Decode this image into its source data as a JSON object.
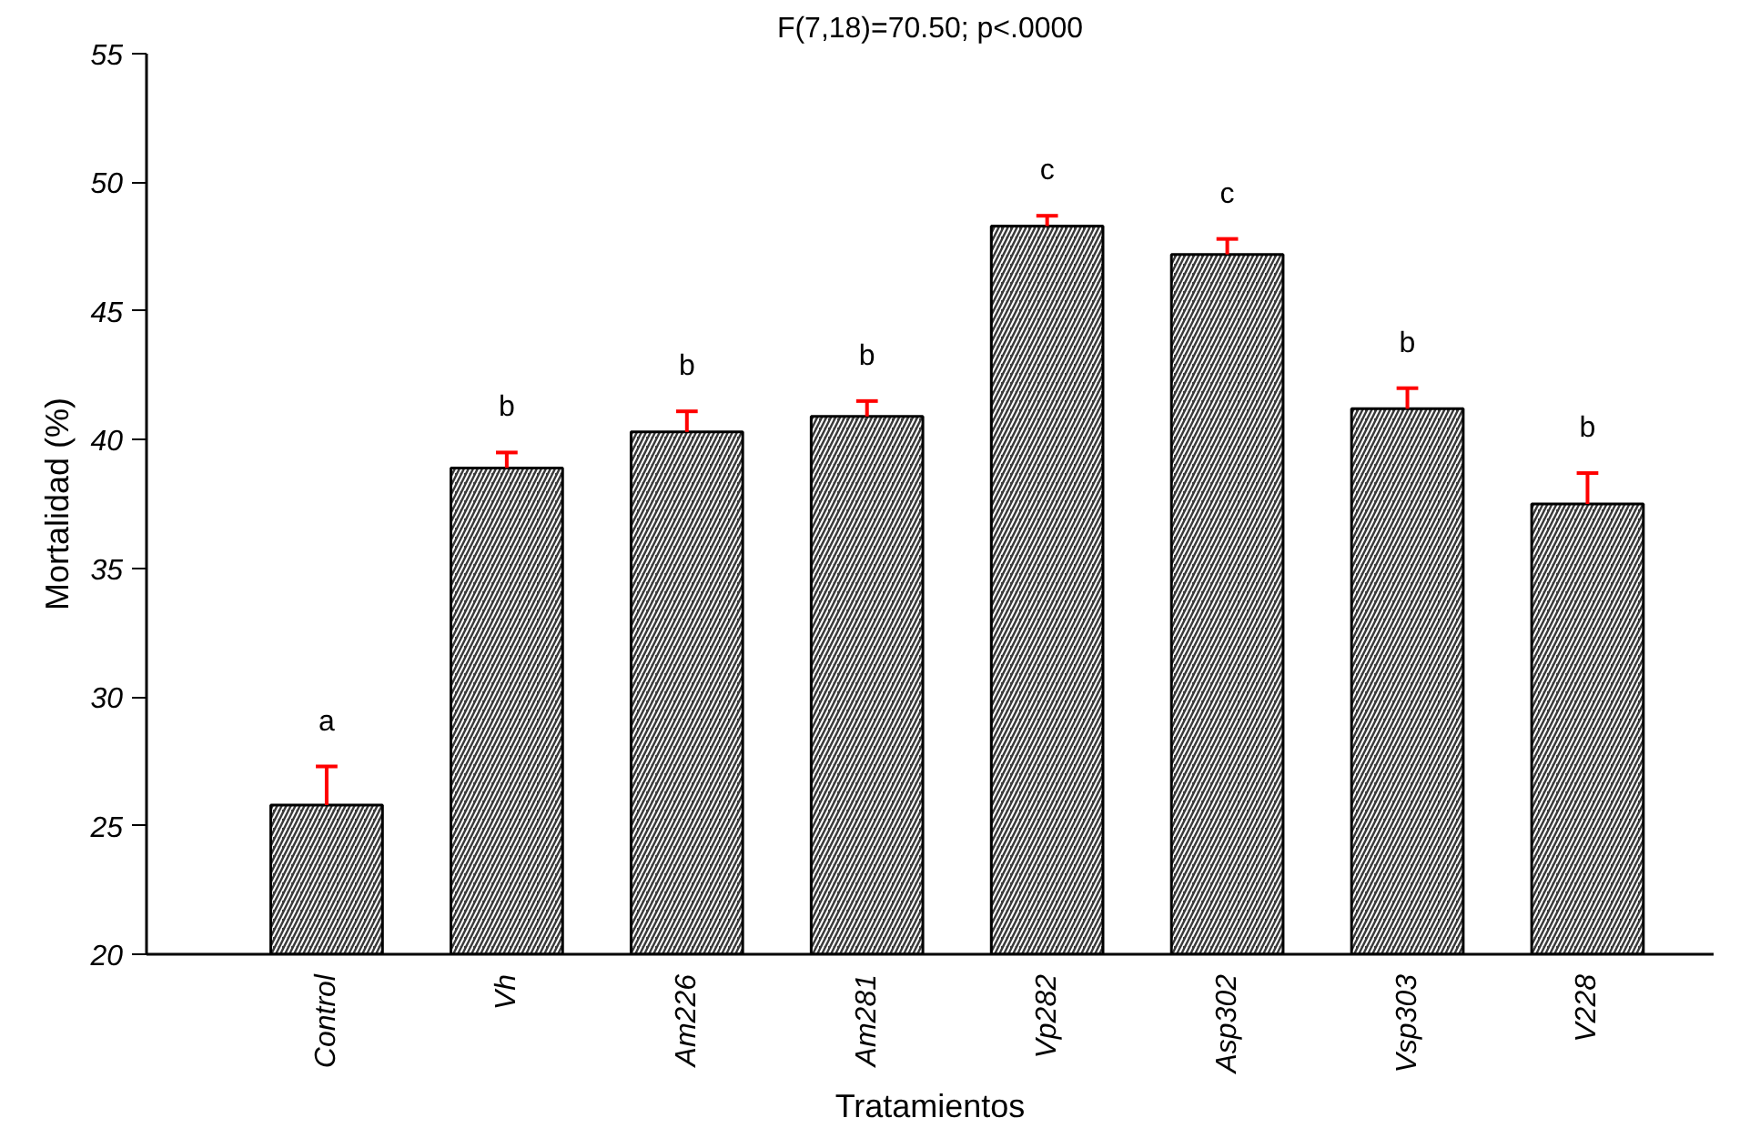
{
  "chart_data": {
    "type": "bar",
    "title": "F(7,18)=70.50; p<.0000",
    "xlabel": "Tratamientos",
    "ylabel": "Mortalidad (%)",
    "categories": [
      "Control",
      "Vh",
      "Am226",
      "Am281",
      "Vp282",
      "Asp302",
      "Vsp303",
      "V228"
    ],
    "values": [
      25.8,
      38.9,
      40.3,
      40.9,
      48.3,
      47.2,
      41.2,
      37.5
    ],
    "errors": [
      [
        25.8,
        27.3
      ],
      [
        38.9,
        39.5
      ],
      [
        40.3,
        41.1
      ],
      [
        40.9,
        41.5
      ],
      [
        48.3,
        48.7
      ],
      [
        47.2,
        47.8
      ],
      [
        41.2,
        42.0
      ],
      [
        37.5,
        38.7
      ]
    ],
    "color": "#3a3a3a",
    "ylim": [
      20,
      55
    ],
    "yticks": [
      20,
      25,
      30,
      35,
      40,
      45,
      50,
      55
    ],
    "grid": false,
    "annotations": [
      "a",
      "b",
      "b",
      "b",
      "c",
      "c",
      "b",
      "b"
    ]
  }
}
